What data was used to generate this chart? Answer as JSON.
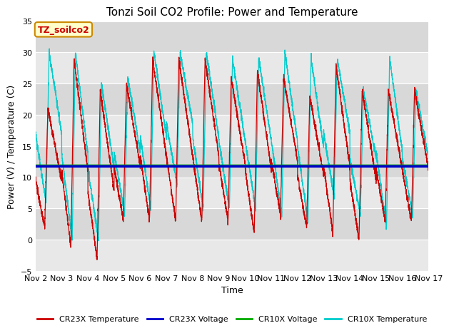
{
  "title": "Tonzi Soil CO2 Profile: Power and Temperature",
  "ylabel": "Power (V) / Temperature (C)",
  "xlabel": "Time",
  "annotation": "TZ_soilco2",
  "ylim": [
    -5,
    35
  ],
  "yticks": [
    -5,
    0,
    5,
    10,
    15,
    20,
    25,
    30,
    35
  ],
  "xlim": [
    0,
    15
  ],
  "xtick_labels": [
    "Nov 2",
    "Nov 3",
    "Nov 4",
    "Nov 5",
    "Nov 6",
    "Nov 7",
    "Nov 8",
    "Nov 9",
    "Nov 10",
    "Nov 11",
    "Nov 12",
    "Nov 13",
    "Nov 14",
    "Nov 15",
    "Nov 16",
    "Nov 17"
  ],
  "cr23x_voltage_value": 11.75,
  "cr10x_voltage_value": 11.85,
  "colors": {
    "cr23x_temp": "#cc0000",
    "cr23x_voltage": "#0000cc",
    "cr10x_voltage": "#00aa00",
    "cr10x_temp": "#00cccc",
    "background_light": "#e8e8e8",
    "background_dark": "#d8d8d8",
    "annotation_bg": "#ffffcc",
    "annotation_border": "#cc8800"
  },
  "legend_entries": [
    "CR23X Temperature",
    "CR23X Voltage",
    "CR10X Voltage",
    "CR10X Temperature"
  ],
  "title_fontsize": 11,
  "axis_fontsize": 9,
  "tick_fontsize": 8
}
